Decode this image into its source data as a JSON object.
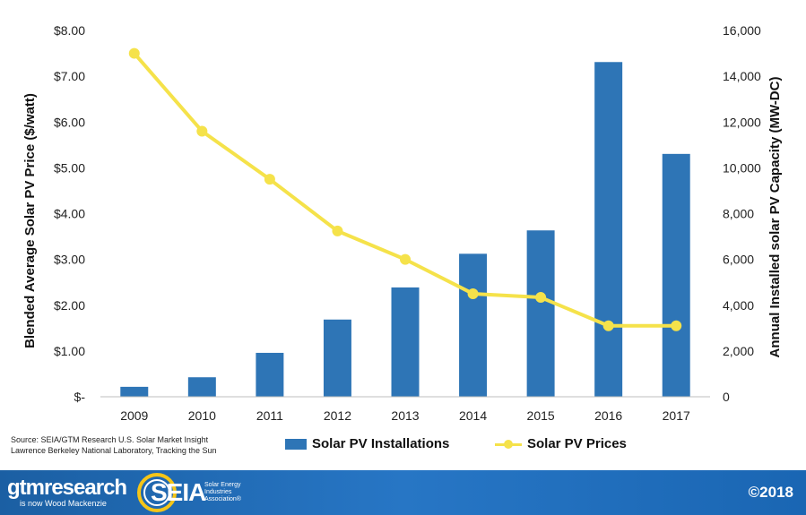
{
  "chart_data": {
    "type": "bar",
    "categories": [
      "2009",
      "2010",
      "2011",
      "2012",
      "2013",
      "2014",
      "2015",
      "2016",
      "2017"
    ],
    "series": [
      {
        "name": "Solar PV Installations",
        "kind": "bar",
        "axis": "right",
        "color": "#2e75b6",
        "values": [
          435,
          852,
          1919,
          3373,
          4776,
          6246,
          7267,
          14620,
          10608
        ]
      },
      {
        "name": "Solar PV Prices",
        "kind": "line",
        "axis": "left",
        "color": "#f5e24a",
        "values": [
          7.5,
          5.8,
          4.75,
          3.62,
          3.0,
          2.25,
          2.17,
          1.55,
          1.55
        ]
      }
    ],
    "ylabel": "Blended Average Solar PV Price ($/watt)",
    "y2label": "Annual Installed solar PV Capacity (MW-DC)",
    "ylim": [
      0,
      8
    ],
    "y2lim": [
      0,
      16000
    ],
    "yticks": [
      "$-",
      "$1.00",
      "$2.00",
      "$3.00",
      "$4.00",
      "$5.00",
      "$6.00",
      "$7.00",
      "$8.00"
    ],
    "y2ticks": [
      "0",
      "2,000",
      "4,000",
      "6,000",
      "8,000",
      "10,000",
      "12,000",
      "14,000",
      "16,000"
    ],
    "legend_position": "bottom",
    "grid": false
  },
  "source": {
    "line1": "Source: SEIA/GTM Research U.S. Solar Market Insight",
    "line2": "Lawrence Berkeley National Laboratory, Tracking the Sun"
  },
  "footer": {
    "gtm_main": "gtmresearch",
    "gtm_sub": "is now Wood Mackenzie",
    "seia": "SEIA",
    "seia_tag": "Solar Energy Industries Association®",
    "copyright": "©2018",
    "background": "#1e6bb8"
  }
}
